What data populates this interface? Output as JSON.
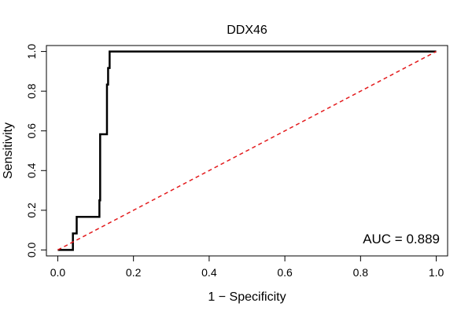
{
  "chart_data": {
    "type": "line",
    "title": "DDX46",
    "xlabel": "1 − Specificity",
    "ylabel": "Sensitivity",
    "xlim": [
      -0.03,
      1.03
    ],
    "ylim": [
      -0.03,
      1.03
    ],
    "x_ticks": [
      0.0,
      0.2,
      0.4,
      0.6,
      0.8,
      1.0
    ],
    "x_tick_labels": [
      "0.0",
      "0.2",
      "0.4",
      "0.6",
      "0.8",
      "1.0"
    ],
    "y_ticks": [
      0.0,
      0.2,
      0.4,
      0.6,
      0.8,
      1.0
    ],
    "y_tick_labels": [
      "0.0",
      "0.2",
      "0.4",
      "0.6",
      "0.8",
      "1.0"
    ],
    "grid": false,
    "annotation": "AUC = 0.889",
    "series": [
      {
        "color": "#000000",
        "style": "solid",
        "x": [
          0.0,
          0.0,
          0.04,
          0.04,
          0.04,
          0.05,
          0.05,
          0.05,
          0.11,
          0.11,
          0.112,
          0.112,
          0.13,
          0.13,
          0.133,
          0.133,
          0.137,
          0.137,
          1.0
        ],
        "y": [
          0.0,
          0.0,
          0.0,
          0.04,
          0.083,
          0.083,
          0.125,
          0.167,
          0.167,
          0.25,
          0.25,
          0.583,
          0.583,
          0.833,
          0.833,
          0.917,
          0.917,
          1.0,
          1.0
        ]
      },
      {
        "color": "#e31a1c",
        "style": "dashed",
        "x": [
          0.0,
          1.0
        ],
        "y": [
          0.0,
          1.0
        ]
      }
    ]
  }
}
